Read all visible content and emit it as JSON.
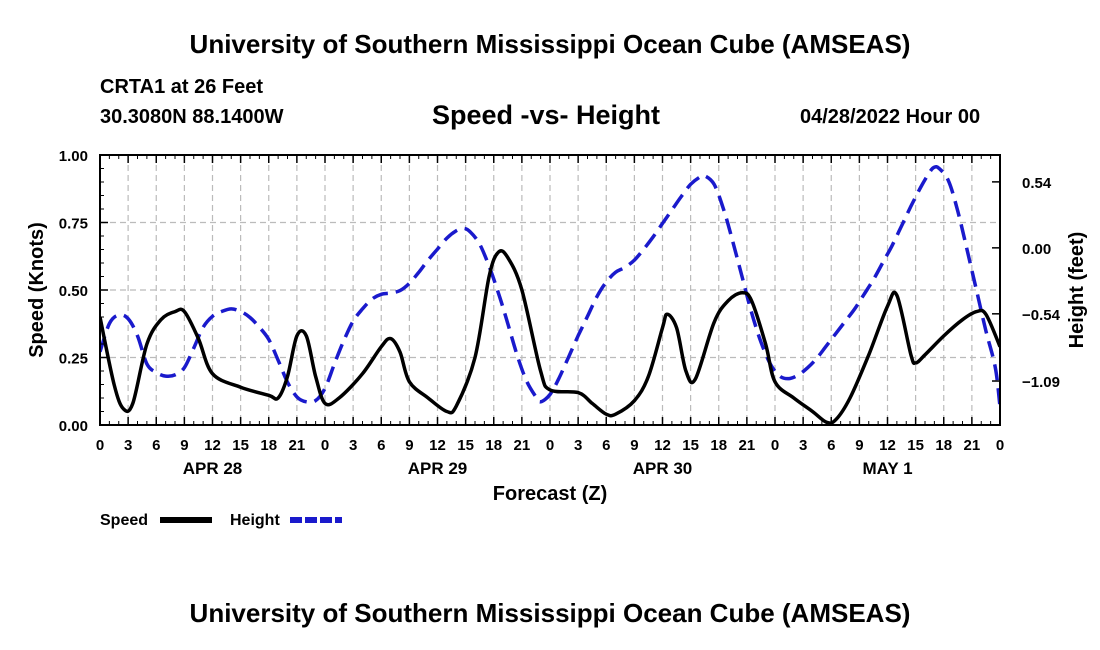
{
  "header": {
    "title": "University of Southern Mississippi Ocean Cube (AMSEAS)",
    "station": "CRTA1 at 26 Feet",
    "coords": "30.3080N  88.1400W",
    "chart_title": "Speed -vs- Height",
    "run_time": "04/28/2022 Hour 00"
  },
  "footer": {
    "title": "University of Southern Mississippi Ocean Cube (AMSEAS)"
  },
  "chart_data": {
    "type": "line",
    "title": "Speed -vs- Height",
    "xlabel": "Forecast (Z)",
    "ylabel": "Speed (Knots)",
    "y2label": "Height (feet)",
    "xlim": [
      0,
      96
    ],
    "ylim": [
      0,
      1.0
    ],
    "y2lim": [
      -1.45,
      0.76
    ],
    "grid": true,
    "legend_position": "bottom-left",
    "yticks": [
      {
        "value": 0.0,
        "label": "0.00"
      },
      {
        "value": 0.25,
        "label": "0.25"
      },
      {
        "value": 0.5,
        "label": "0.50"
      },
      {
        "value": 0.75,
        "label": "0.75"
      },
      {
        "value": 1.0,
        "label": "1.00"
      }
    ],
    "y2ticks": [
      {
        "value": 0.54,
        "label": "0.54"
      },
      {
        "value": 0.0,
        "label": "0.00"
      },
      {
        "value": -0.54,
        "label": "−0.54"
      },
      {
        "value": -1.09,
        "label": "−1.09"
      }
    ],
    "xticks": [
      {
        "hour": 0,
        "label": "0"
      },
      {
        "hour": 3,
        "label": "3"
      },
      {
        "hour": 6,
        "label": "6"
      },
      {
        "hour": 9,
        "label": "9"
      },
      {
        "hour": 12,
        "label": "12"
      },
      {
        "hour": 15,
        "label": "15"
      },
      {
        "hour": 18,
        "label": "18"
      },
      {
        "hour": 21,
        "label": "21"
      },
      {
        "hour": 24,
        "label": "0"
      },
      {
        "hour": 27,
        "label": "3"
      },
      {
        "hour": 30,
        "label": "6"
      },
      {
        "hour": 33,
        "label": "9"
      },
      {
        "hour": 36,
        "label": "12"
      },
      {
        "hour": 39,
        "label": "15"
      },
      {
        "hour": 42,
        "label": "18"
      },
      {
        "hour": 45,
        "label": "21"
      },
      {
        "hour": 48,
        "label": "0"
      },
      {
        "hour": 51,
        "label": "3"
      },
      {
        "hour": 54,
        "label": "6"
      },
      {
        "hour": 57,
        "label": "9"
      },
      {
        "hour": 60,
        "label": "12"
      },
      {
        "hour": 63,
        "label": "15"
      },
      {
        "hour": 66,
        "label": "18"
      },
      {
        "hour": 69,
        "label": "21"
      },
      {
        "hour": 72,
        "label": "0"
      },
      {
        "hour": 75,
        "label": "3"
      },
      {
        "hour": 78,
        "label": "6"
      },
      {
        "hour": 81,
        "label": "9"
      },
      {
        "hour": 84,
        "label": "12"
      },
      {
        "hour": 87,
        "label": "15"
      },
      {
        "hour": 90,
        "label": "18"
      },
      {
        "hour": 93,
        "label": "21"
      },
      {
        "hour": 96,
        "label": "0"
      }
    ],
    "day_labels": [
      {
        "hour": 12,
        "label": "APR 28"
      },
      {
        "hour": 36,
        "label": "APR 29"
      },
      {
        "hour": 60,
        "label": "APR 30"
      },
      {
        "hour": 84,
        "label": "MAY 1"
      }
    ],
    "series": [
      {
        "name": "Speed",
        "axis": "left",
        "color": "#000000",
        "dash": "solid",
        "points": [
          [
            0,
            0.4
          ],
          [
            1.5,
            0.15
          ],
          [
            2.5,
            0.06
          ],
          [
            3.5,
            0.08
          ],
          [
            5,
            0.3
          ],
          [
            6.5,
            0.39
          ],
          [
            8,
            0.42
          ],
          [
            9,
            0.42
          ],
          [
            10.5,
            0.32
          ],
          [
            12,
            0.19
          ],
          [
            15,
            0.14
          ],
          [
            18,
            0.11
          ],
          [
            19,
            0.1
          ],
          [
            20,
            0.18
          ],
          [
            21,
            0.33
          ],
          [
            22,
            0.33
          ],
          [
            23,
            0.18
          ],
          [
            24,
            0.08
          ],
          [
            25.5,
            0.1
          ],
          [
            28,
            0.19
          ],
          [
            30,
            0.29
          ],
          [
            31,
            0.32
          ],
          [
            32,
            0.27
          ],
          [
            33,
            0.16
          ],
          [
            35,
            0.1
          ],
          [
            37,
            0.05
          ],
          [
            38,
            0.07
          ],
          [
            40,
            0.25
          ],
          [
            41.5,
            0.55
          ],
          [
            42.5,
            0.64
          ],
          [
            43.5,
            0.62
          ],
          [
            45,
            0.5
          ],
          [
            47,
            0.2
          ],
          [
            48,
            0.13
          ],
          [
            51,
            0.12
          ],
          [
            52.5,
            0.08
          ],
          [
            54,
            0.04
          ],
          [
            55,
            0.04
          ],
          [
            57,
            0.09
          ],
          [
            58.5,
            0.18
          ],
          [
            60,
            0.36
          ],
          [
            60.5,
            0.41
          ],
          [
            61.5,
            0.36
          ],
          [
            62.5,
            0.2
          ],
          [
            63.5,
            0.17
          ],
          [
            65.5,
            0.38
          ],
          [
            67,
            0.46
          ],
          [
            68.5,
            0.49
          ],
          [
            69.5,
            0.46
          ],
          [
            71,
            0.3
          ],
          [
            72,
            0.16
          ],
          [
            74,
            0.1
          ],
          [
            76,
            0.05
          ],
          [
            77.5,
            0.01
          ],
          [
            78.5,
            0.02
          ],
          [
            80,
            0.1
          ],
          [
            82,
            0.26
          ],
          [
            84,
            0.44
          ],
          [
            85,
            0.48
          ],
          [
            86.5,
            0.26
          ],
          [
            87,
            0.23
          ],
          [
            88,
            0.26
          ],
          [
            90,
            0.33
          ],
          [
            92,
            0.39
          ],
          [
            93.5,
            0.42
          ],
          [
            94.5,
            0.41
          ],
          [
            96,
            0.29
          ]
        ]
      },
      {
        "name": "Height",
        "axis": "right",
        "color": "#1a1acc",
        "dash": "dashed",
        "points": [
          [
            0,
            -0.85
          ],
          [
            1,
            -0.62
          ],
          [
            2,
            -0.55
          ],
          [
            3,
            -0.58
          ],
          [
            4,
            -0.72
          ],
          [
            5,
            -0.95
          ],
          [
            6,
            -1.02
          ],
          [
            7,
            -1.05
          ],
          [
            8,
            -1.04
          ],
          [
            9,
            -0.98
          ],
          [
            10,
            -0.82
          ],
          [
            11,
            -0.65
          ],
          [
            12,
            -0.56
          ],
          [
            13,
            -0.52
          ],
          [
            14,
            -0.5
          ],
          [
            15,
            -0.52
          ],
          [
            16,
            -0.57
          ],
          [
            17,
            -0.65
          ],
          [
            18,
            -0.75
          ],
          [
            19,
            -0.92
          ],
          [
            20,
            -1.1
          ],
          [
            21,
            -1.22
          ],
          [
            22,
            -1.26
          ],
          [
            23,
            -1.25
          ],
          [
            24,
            -1.15
          ],
          [
            25,
            -0.95
          ],
          [
            26,
            -0.76
          ],
          [
            27,
            -0.6
          ],
          [
            28,
            -0.5
          ],
          [
            29,
            -0.42
          ],
          [
            30,
            -0.38
          ],
          [
            31,
            -0.37
          ],
          [
            32,
            -0.35
          ],
          [
            33,
            -0.29
          ],
          [
            34,
            -0.2
          ],
          [
            35,
            -0.1
          ],
          [
            36,
            -0.01
          ],
          [
            37,
            0.08
          ],
          [
            38,
            0.14
          ],
          [
            38.8,
            0.16
          ],
          [
            39.5,
            0.13
          ],
          [
            40.5,
            0.03
          ],
          [
            41.5,
            -0.15
          ],
          [
            42.5,
            -0.37
          ],
          [
            43.5,
            -0.62
          ],
          [
            44.5,
            -0.88
          ],
          [
            45.5,
            -1.09
          ],
          [
            46.5,
            -1.22
          ],
          [
            47,
            -1.26
          ],
          [
            48,
            -1.2
          ],
          [
            49,
            -1.06
          ],
          [
            50,
            -0.89
          ],
          [
            51,
            -0.72
          ],
          [
            52,
            -0.56
          ],
          [
            53,
            -0.4
          ],
          [
            54,
            -0.28
          ],
          [
            55,
            -0.2
          ],
          [
            56,
            -0.16
          ],
          [
            57,
            -0.1
          ],
          [
            58,
            -0.01
          ],
          [
            59,
            0.09
          ],
          [
            60,
            0.2
          ],
          [
            61,
            0.31
          ],
          [
            62,
            0.42
          ],
          [
            63,
            0.52
          ],
          [
            64,
            0.58
          ],
          [
            64.5,
            0.59
          ],
          [
            65.5,
            0.52
          ],
          [
            66.5,
            0.32
          ],
          [
            67.5,
            0.05
          ],
          [
            68.5,
            -0.24
          ],
          [
            69.5,
            -0.53
          ],
          [
            70.5,
            -0.77
          ],
          [
            71.5,
            -0.95
          ],
          [
            72.5,
            -1.05
          ],
          [
            73.5,
            -1.07
          ],
          [
            74.5,
            -1.04
          ],
          [
            75.5,
            -0.98
          ],
          [
            76.5,
            -0.9
          ],
          [
            77.5,
            -0.8
          ],
          [
            78.5,
            -0.7
          ],
          [
            79.5,
            -0.6
          ],
          [
            80.5,
            -0.5
          ],
          [
            81.5,
            -0.38
          ],
          [
            82.5,
            -0.26
          ],
          [
            83.5,
            -0.12
          ],
          [
            84.5,
            0.02
          ],
          [
            85.5,
            0.18
          ],
          [
            86.5,
            0.34
          ],
          [
            87.5,
            0.49
          ],
          [
            88.5,
            0.62
          ],
          [
            89,
            0.66
          ],
          [
            89.5,
            0.65
          ],
          [
            90.5,
            0.55
          ],
          [
            91.5,
            0.3
          ],
          [
            92.5,
            -0.02
          ],
          [
            93.5,
            -0.35
          ],
          [
            94.5,
            -0.68
          ],
          [
            95.5,
            -0.98
          ],
          [
            96,
            -1.3
          ]
        ]
      }
    ],
    "legend": [
      {
        "label": "Speed",
        "color": "#000000",
        "dash": "solid"
      },
      {
        "label": "Height",
        "color": "#1a1acc",
        "dash": "dashed"
      }
    ]
  }
}
